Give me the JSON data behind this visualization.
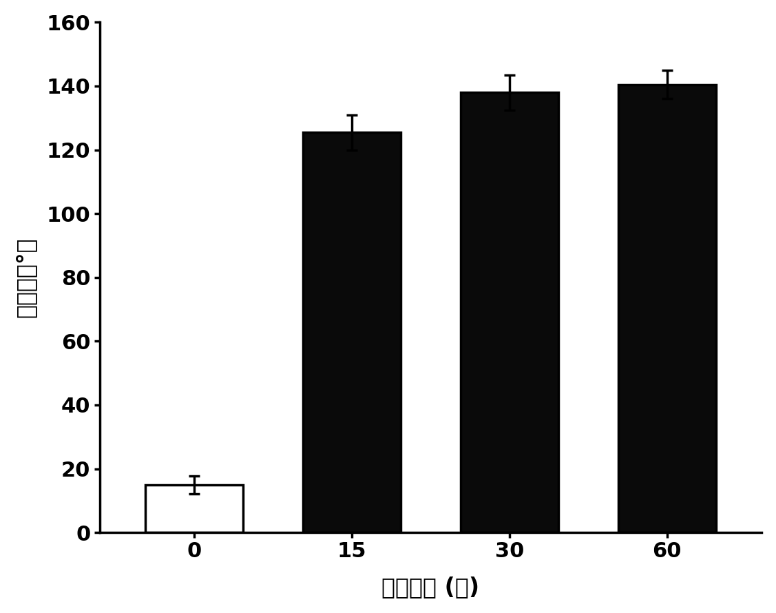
{
  "categories": [
    "0",
    "15",
    "30",
    "60"
  ],
  "values": [
    15.0,
    125.5,
    138.0,
    140.5
  ],
  "errors": [
    2.8,
    5.5,
    5.5,
    4.5
  ],
  "bar_colors": [
    "#ffffff",
    "#0a0a0a",
    "#0a0a0a",
    "#0a0a0a"
  ],
  "bar_edgecolors": [
    "#000000",
    "#000000",
    "#000000",
    "#000000"
  ],
  "ylabel": "接触角（°）",
  "xlabel": "处时间理 (秒)",
  "ylim": [
    0,
    160
  ],
  "yticks": [
    0,
    20,
    40,
    60,
    80,
    100,
    120,
    140,
    160
  ],
  "bar_width": 0.62,
  "capsize": 6,
  "axis_fontsize": 24,
  "tick_fontsize": 22,
  "background_color": "#ffffff",
  "errorbar_color": "#000000",
  "linewidth": 2.5
}
